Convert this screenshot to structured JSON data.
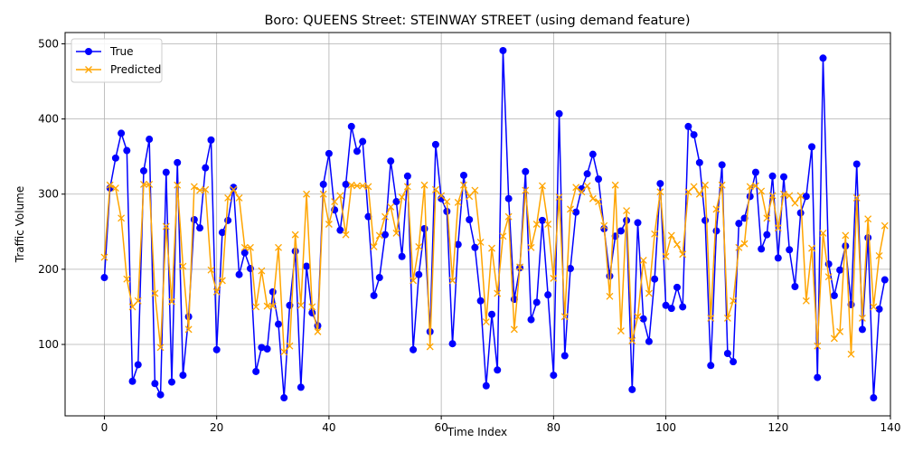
{
  "chart_data": {
    "type": "line",
    "title": "Boro: QUEENS Street: STEINWAY STREET (using demand feature)",
    "xlabel": "Time Index",
    "ylabel": "Traffic Volume",
    "xlim": [
      -7,
      140
    ],
    "ylim": [
      5,
      515
    ],
    "xticks": [
      0,
      20,
      40,
      60,
      80,
      100,
      120,
      140
    ],
    "yticks": [
      100,
      200,
      300,
      400,
      500
    ],
    "grid": true,
    "legend_position": "top-left",
    "x": [
      0,
      1,
      2,
      3,
      4,
      5,
      6,
      7,
      8,
      9,
      10,
      11,
      12,
      13,
      14,
      15,
      16,
      17,
      18,
      19,
      20,
      21,
      22,
      23,
      24,
      25,
      26,
      27,
      28,
      29,
      30,
      31,
      32,
      33,
      34,
      35,
      36,
      37,
      38,
      39,
      40,
      41,
      42,
      43,
      44,
      45,
      46,
      47,
      48,
      49,
      50,
      51,
      52,
      53,
      54,
      55,
      56,
      57,
      58,
      59,
      60,
      61,
      62,
      63,
      64,
      65,
      66,
      67,
      68,
      69,
      70,
      71,
      72,
      73,
      74,
      75,
      76,
      77,
      78,
      79,
      80,
      81,
      82,
      83,
      84,
      85,
      86,
      87,
      88,
      89,
      90,
      91,
      92,
      93,
      94,
      95,
      96,
      97,
      98,
      99,
      100,
      101,
      102,
      103,
      104,
      105,
      106,
      107,
      108,
      109,
      110,
      111,
      112,
      113,
      114,
      115,
      116,
      117,
      118,
      119,
      120,
      121,
      122,
      123,
      124,
      125,
      126,
      127,
      128,
      129,
      130,
      131,
      132,
      133,
      134,
      135,
      136,
      137,
      138,
      139
    ],
    "series": [
      {
        "name": "True",
        "color": "#0000ff",
        "marker": "circle",
        "values": [
          189,
          308,
          348,
          381,
          358,
          51,
          73,
          331,
          373,
          48,
          33,
          329,
          50,
          342,
          59,
          137,
          266,
          255,
          335,
          372,
          93,
          249,
          265,
          309,
          193,
          222,
          201,
          64,
          96,
          94,
          170,
          127,
          29,
          152,
          224,
          43,
          204,
          142,
          125,
          313,
          354,
          279,
          252,
          313,
          390,
          357,
          370,
          270,
          165,
          189,
          246,
          344,
          290,
          217,
          324,
          93,
          193,
          254,
          117,
          366,
          294,
          277,
          101,
          233,
          325,
          266,
          229,
          158,
          45,
          140,
          66,
          491,
          294,
          160,
          202,
          330,
          133,
          156,
          265,
          166,
          59,
          407,
          85,
          201,
          276,
          307,
          327,
          353,
          320,
          254,
          191,
          244,
          251,
          265,
          40,
          262,
          134,
          104,
          187,
          314,
          152,
          148,
          176,
          150,
          390,
          379,
          342,
          265,
          72,
          251,
          339,
          88,
          77,
          261,
          268,
          297,
          329,
          227,
          246,
          324,
          215,
          323,
          226,
          177,
          275,
          297,
          363,
          56,
          481,
          207,
          165,
          199,
          231,
          153,
          340,
          120,
          242,
          29,
          147,
          186
        ]
      },
      {
        "name": "Predicted",
        "color": "#ffa500",
        "marker": "x",
        "values": [
          216,
          312,
          308,
          268,
          187,
          150,
          158,
          313,
          313,
          168,
          96,
          257,
          157,
          312,
          204,
          120,
          310,
          305,
          306,
          199,
          170,
          185,
          295,
          306,
          295,
          229,
          229,
          150,
          198,
          151,
          151,
          229,
          90,
          98,
          246,
          152,
          300,
          150,
          117,
          300,
          260,
          290,
          298,
          246,
          312,
          311,
          311,
          310,
          230,
          245,
          270,
          283,
          248,
          296,
          310,
          185,
          230,
          312,
          97,
          306,
          298,
          290,
          185,
          289,
          312,
          297,
          305,
          236,
          130,
          228,
          168,
          244,
          270,
          120,
          203,
          305,
          229,
          260,
          311,
          260,
          188,
          296,
          137,
          280,
          309,
          303,
          311,
          294,
          290,
          258,
          164,
          312,
          118,
          278,
          105,
          137,
          212,
          168,
          247,
          303,
          217,
          245,
          233,
          220,
          303,
          310,
          300,
          312,
          135,
          280,
          312,
          135,
          158,
          229,
          234,
          310,
          311,
          304,
          268,
          298,
          255,
          300,
          298,
          288,
          298,
          158,
          228,
          98,
          248,
          190,
          108,
          117,
          245,
          87,
          295,
          135,
          267,
          150,
          218,
          258
        ]
      }
    ]
  }
}
